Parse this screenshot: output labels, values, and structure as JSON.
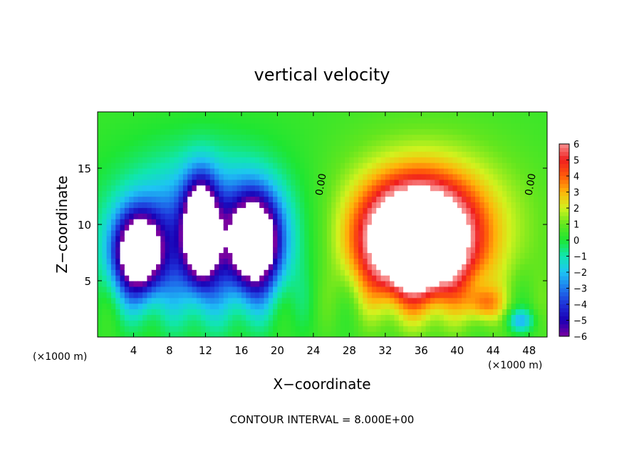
{
  "chart_data": {
    "type": "heatmap",
    "title": "vertical velocity",
    "xlabel": "X−coordinate",
    "ylabel": "Z−coordinate",
    "x_unit_left": "(×1000 m)",
    "x_unit_right": "(×1000 m)",
    "footer": "CONTOUR INTERVAL = 8.000E+00",
    "xlim": [
      0,
      50
    ],
    "ylim": [
      0,
      20
    ],
    "x_ticks": [
      4,
      8,
      12,
      16,
      20,
      24,
      28,
      32,
      36,
      40,
      44,
      48
    ],
    "y_ticks": [
      5,
      10,
      15
    ],
    "colorbar": {
      "min": -6,
      "max": 6,
      "ticks": [
        "6",
        "5",
        "4",
        "3",
        "2",
        "1",
        "0",
        "−1",
        "−2",
        "−3",
        "−4",
        "−5",
        "−6"
      ]
    },
    "contour_labels": [
      {
        "text": "0.00",
        "x": 25.2,
        "y": 13.5
      },
      {
        "text": "0.00",
        "x": 48.5,
        "y": 13.5
      }
    ],
    "features": [
      {
        "sign": "negative",
        "x": 4.5,
        "z": 7.5,
        "sx": 2.6,
        "sz": 3.5,
        "peak": -9
      },
      {
        "sign": "negative",
        "x": 11.5,
        "z": 9.5,
        "sx": 1.8,
        "sz": 4.2,
        "peak": -9
      },
      {
        "sign": "negative",
        "x": 17.5,
        "z": 8.5,
        "sx": 2.6,
        "sz": 4.0,
        "peak": -9
      },
      {
        "sign": "negative",
        "x": 12.0,
        "z": 9.0,
        "sx": 9.5,
        "sz": 6.5,
        "peak": -4.5
      },
      {
        "sign": "positive",
        "x": 35.5,
        "z": 8.5,
        "sx": 5.5,
        "sz": 4.5,
        "peak": 11
      },
      {
        "sign": "positive",
        "x": 36.5,
        "z": 10.0,
        "sx": 9.5,
        "sz": 6.5,
        "peak": 3.5
      },
      {
        "sign": "positive",
        "x": 43.0,
        "z": 3.0,
        "sx": 2.0,
        "sz": 1.5,
        "peak": 2.5
      },
      {
        "sign": "negative",
        "x": 47.0,
        "z": 1.5,
        "sx": 1.5,
        "sz": 1.0,
        "peak": -2.5
      }
    ]
  }
}
